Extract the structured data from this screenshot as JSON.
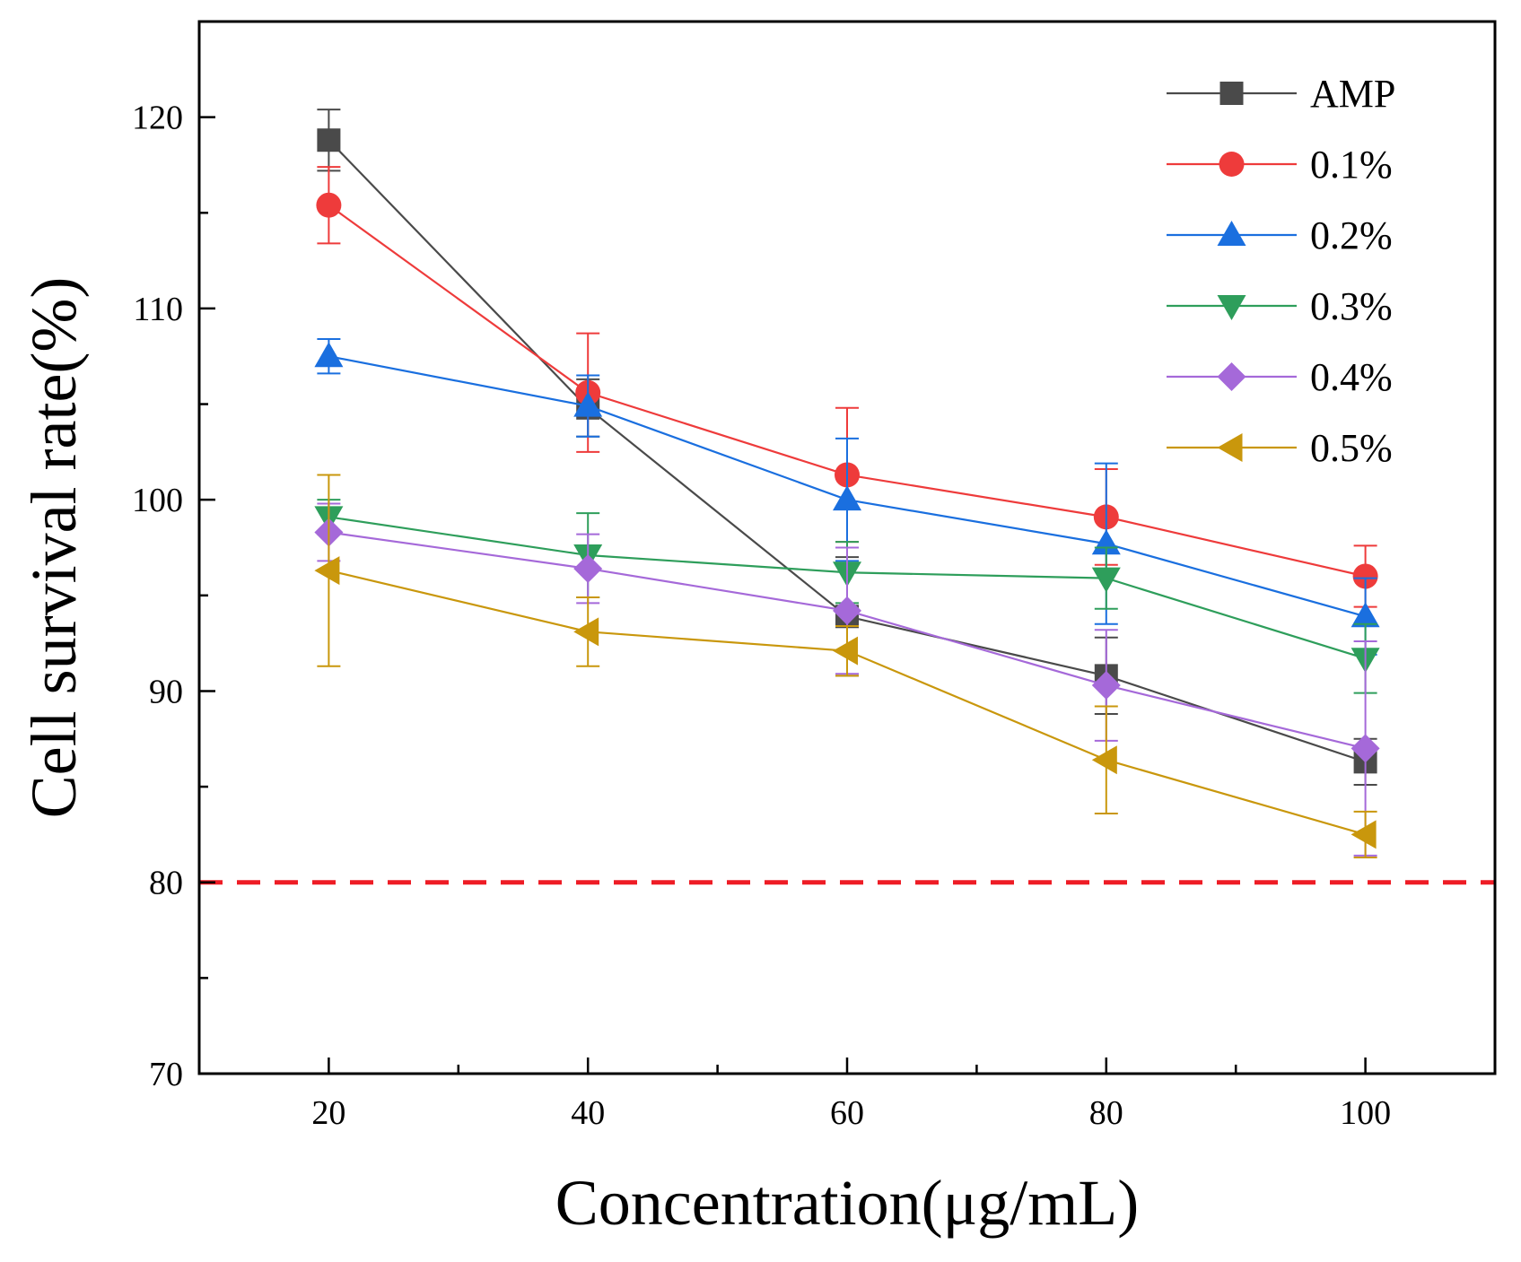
{
  "chart_data": {
    "type": "line",
    "title": "",
    "xlabel": "Concentration(μg/mL)",
    "ylabel": "Cell survival rate(%)",
    "xlim": [
      10,
      110
    ],
    "ylim": [
      70,
      125
    ],
    "x": [
      20,
      40,
      60,
      80,
      100
    ],
    "x_ticks": [
      "20",
      "40",
      "60",
      "80",
      "100"
    ],
    "y_ticks": [
      "70",
      "80",
      "90",
      "100",
      "110",
      "120"
    ],
    "legend_position": "top-right",
    "reference_line": {
      "y": 80,
      "color": "#ee1c25",
      "style": "dashed"
    },
    "series": [
      {
        "name": "AMP",
        "marker": "square",
        "color": "#4a4a4a",
        "values": [
          118.8,
          104.8,
          93.9,
          90.8,
          86.3
        ],
        "errors": [
          1.6,
          1.5,
          3.1,
          2.0,
          1.2
        ]
      },
      {
        "name": "0.1%",
        "marker": "circle",
        "color": "#ee3b3b",
        "values": [
          115.4,
          105.6,
          101.3,
          99.1,
          96.0
        ],
        "errors": [
          2.0,
          3.1,
          3.5,
          2.5,
          1.6
        ]
      },
      {
        "name": "0.2%",
        "marker": "triangle-up",
        "color": "#1a6fdf",
        "values": [
          107.5,
          104.9,
          100.0,
          97.7,
          93.9
        ],
        "errors": [
          0.9,
          1.6,
          3.2,
          4.2,
          2.0
        ]
      },
      {
        "name": "0.3%",
        "marker": "triangle-down",
        "color": "#2e9e5b",
        "values": [
          99.1,
          97.1,
          96.2,
          95.9,
          91.7
        ],
        "errors": [
          0.9,
          2.2,
          1.6,
          1.6,
          1.8
        ]
      },
      {
        "name": "0.4%",
        "marker": "diamond",
        "color": "#a569d9",
        "values": [
          98.3,
          96.4,
          94.2,
          90.3,
          87.0
        ],
        "errors": [
          1.5,
          1.8,
          3.3,
          2.9,
          5.6
        ]
      },
      {
        "name": "0.5%",
        "marker": "triangle-left",
        "color": "#c9970c",
        "values": [
          96.3,
          93.1,
          92.1,
          86.4,
          82.5
        ],
        "errors": [
          5.0,
          1.8,
          1.3,
          2.8,
          1.2
        ]
      }
    ]
  }
}
